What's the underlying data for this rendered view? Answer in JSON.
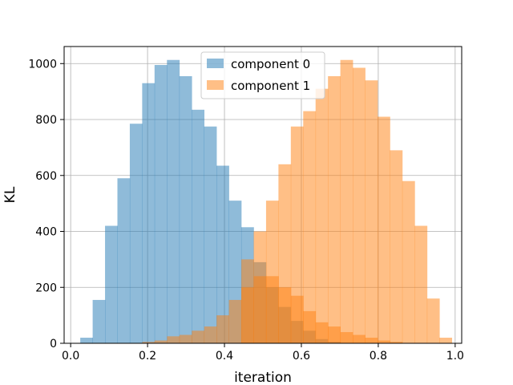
{
  "chart_data": {
    "type": "histogram",
    "xlabel": "iteration",
    "ylabel": "KL",
    "xlim": [
      -0.017,
      1.017
    ],
    "ylim": [
      0,
      1061
    ],
    "xticks": [
      0.0,
      0.2,
      0.4,
      0.6,
      0.8,
      1.0
    ],
    "xtick_labels": [
      "0.0",
      "0.2",
      "0.4",
      "0.6",
      "0.8",
      "1.0"
    ],
    "yticks": [
      0,
      200,
      400,
      600,
      800,
      1000
    ],
    "ytick_labels": [
      "0",
      "200",
      "400",
      "600",
      "800",
      "1000"
    ],
    "grid": true,
    "legend_position": "top-center",
    "bin_width": 0.0322,
    "series": [
      {
        "name": "component 0",
        "color": "#1f77b4",
        "opacity": 0.5,
        "bin_start": 0.025,
        "values": [
          20,
          155,
          420,
          590,
          785,
          930,
          995,
          1013,
          955,
          835,
          775,
          635,
          510,
          415,
          290,
          200,
          130,
          80,
          45,
          15,
          5
        ]
      },
      {
        "name": "component 1",
        "color": "#ff7f0e",
        "opacity": 0.5,
        "bin_start": 0.1862,
        "values": [
          5,
          10,
          25,
          30,
          45,
          60,
          100,
          155,
          200,
          240,
          240,
          200,
          170,
          115,
          75,
          60,
          40,
          30,
          20,
          10,
          5
        ]
      },
      {
        "name": "component 1",
        "color": "#ff7f0e",
        "opacity": 0.5,
        "bin_start": 0.4438,
        "values": [
          300,
          400,
          510,
          640,
          775,
          830,
          910,
          955,
          1013,
          985,
          940,
          810,
          690,
          580,
          420,
          160,
          20
        ]
      }
    ]
  }
}
